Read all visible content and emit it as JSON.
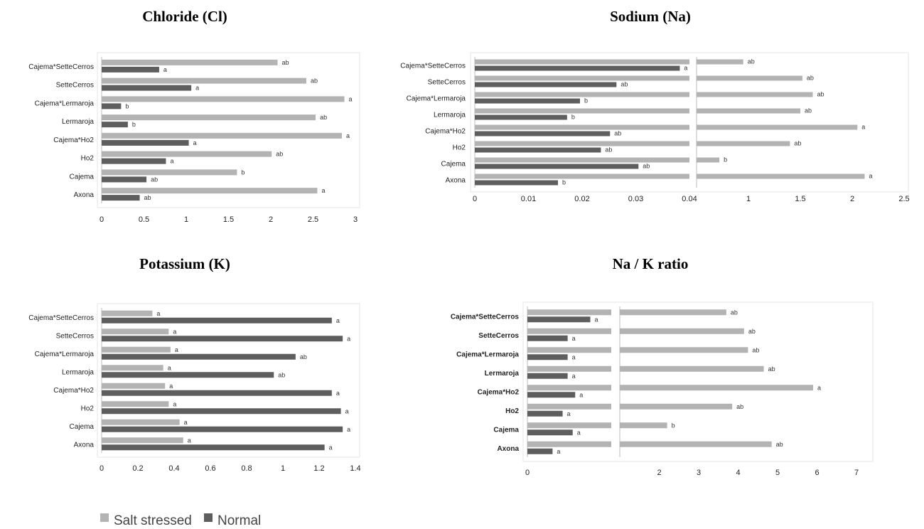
{
  "colors": {
    "salt": "#b3b3b3",
    "normal": "#5e5e5e",
    "axis": "#bdbdbd",
    "frame": "#e6e6e6"
  },
  "legend": {
    "salt_label": "Salt stressed",
    "normal_label": "Normal"
  },
  "chart_data": [
    {
      "type": "bar",
      "orientation": "horizontal",
      "title": "Chloride (Cl)",
      "categories": [
        "Axona",
        "Cajema",
        "Ho2",
        "Cajema*Ho2",
        "Lermaroja",
        "Cajema*Lermaroja",
        "SetteCerros",
        "Cajema*SetteCerros"
      ],
      "series": [
        {
          "name": "Salt stressed",
          "values": [
            2.55,
            1.6,
            2.01,
            2.84,
            2.53,
            2.87,
            2.42,
            2.08
          ],
          "labels": [
            "a",
            "b",
            "ab",
            "a",
            "ab",
            "a",
            "ab",
            "ab"
          ]
        },
        {
          "name": "Normal",
          "values": [
            0.45,
            0.53,
            0.76,
            1.03,
            0.31,
            0.23,
            1.06,
            0.68
          ],
          "labels": [
            "ab",
            "ab",
            "a",
            "a",
            "b",
            "b",
            "a",
            "a"
          ]
        }
      ],
      "xlim": [
        0,
        3
      ],
      "xticks": [
        "0",
        "0.5",
        "1",
        "1.5",
        "2",
        "2.5",
        "3"
      ]
    },
    {
      "type": "bar",
      "orientation": "horizontal",
      "title": "Sodium (Na)",
      "categories": [
        "Axona",
        "Cajema",
        "Ho2",
        "Cajema*Ho2",
        "Lermaroja",
        "Cajema*Lermaroja",
        "SetteCerros",
        "Cajema*SetteCerros"
      ],
      "series": [
        {
          "name": "Salt stressed",
          "values": [
            2.12,
            0.72,
            1.4,
            2.05,
            1.5,
            1.62,
            1.52,
            0.95
          ],
          "labels": [
            "a",
            "b",
            "ab",
            "a",
            "ab",
            "ab",
            "ab",
            "ab"
          ]
        },
        {
          "name": "Normal",
          "values": [
            0.0155,
            0.0305,
            0.0235,
            0.0252,
            0.0172,
            0.0196,
            0.0264,
            0.0382
          ],
          "labels": [
            "b",
            "ab",
            "ab",
            "ab",
            "b",
            "b",
            "ab",
            "a"
          ]
        }
      ],
      "xlim": [
        0,
        2.5
      ],
      "axis_break": 0.04,
      "xticks": [
        "0",
        "0.01",
        "0.02",
        "0.03",
        "0.04",
        "1",
        "1.5",
        "2",
        "2.5"
      ]
    },
    {
      "type": "bar",
      "orientation": "horizontal",
      "title": "Potassium (K)",
      "categories": [
        "Axona",
        "Cajema",
        "Ho2",
        "Cajema*Ho2",
        "Lermaroja",
        "Cajema*Lermaroja",
        "SetteCerros",
        "Cajema*SetteCerros"
      ],
      "series": [
        {
          "name": "Salt stressed",
          "values": [
            0.45,
            0.43,
            0.37,
            0.35,
            0.34,
            0.38,
            0.37,
            0.28
          ],
          "labels": [
            "a",
            "a",
            "a",
            "a",
            "a",
            "a",
            "a",
            "a"
          ]
        },
        {
          "name": "Normal",
          "values": [
            1.23,
            1.33,
            1.32,
            1.27,
            0.95,
            1.07,
            1.33,
            1.27
          ],
          "labels": [
            "a",
            "a",
            "a",
            "a",
            "ab",
            "ab",
            "a",
            "a"
          ]
        }
      ],
      "xlim": [
        0,
        1.4
      ],
      "xticks": [
        "0",
        "0.2",
        "0.4",
        "0.6",
        "0.8",
        "1",
        "1.2",
        "1.4"
      ]
    },
    {
      "type": "bar",
      "orientation": "horizontal",
      "title": "Na / K ratio",
      "categories": [
        "Axona",
        "Cajema",
        "Ho2",
        "Cajema*Ho2",
        "Lermaroja",
        "Cajema*Lermaroja",
        "SetteCerros",
        "Cajema*SetteCerros"
      ],
      "series": [
        {
          "name": "Salt stressed",
          "values": [
            4.85,
            2.2,
            3.85,
            5.9,
            4.65,
            4.25,
            4.15,
            3.7
          ],
          "labels": [
            "ab",
            "b",
            "ab",
            "a",
            "ab",
            "ab",
            "ab",
            "ab"
          ]
        },
        {
          "name": "Normal",
          "values": [
            0.01,
            0.018,
            0.014,
            0.019,
            0.016,
            0.016,
            0.016,
            0.025
          ],
          "labels": [
            "a",
            "a",
            "a",
            "a",
            "a",
            "a",
            "a",
            "a"
          ]
        }
      ],
      "xlim": [
        0,
        7
      ],
      "axis_break": 1,
      "xticks": [
        "0",
        "2",
        "3",
        "4",
        "5",
        "6",
        "7"
      ]
    }
  ]
}
